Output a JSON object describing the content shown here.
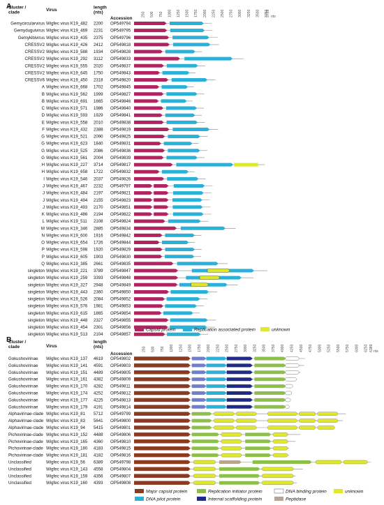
{
  "colors": {
    "capsid": "#b0245f",
    "rep": "#2bb0d8",
    "unknown": "#dfe82c",
    "green": "#8cc04a",
    "white": "#ffffff",
    "navy": "#1f2b86",
    "tan": "#b9a58f",
    "brown": "#8a3b22",
    "line": "#888888"
  },
  "panelA": {
    "label": "A",
    "headers": {
      "cluster": "Cluster /",
      "cluster2": "clade",
      "virus": "Virus",
      "length": "length",
      "length2": "(nts)",
      "accession": "Accession"
    },
    "ticks": [
      "250",
      "500",
      "750",
      "1000",
      "1250",
      "1500",
      "1750",
      "2000",
      "2250",
      "2500",
      "2750",
      "3000",
      "3250",
      "3500",
      "3750",
      "3789"
    ],
    "units": "nts",
    "legend": {
      "capsid": "Capsid protein",
      "rep": "Replication associated protein",
      "unknown": "unknown"
    },
    "rows": [
      {
        "cluster": "Gemycircularvirus",
        "virus": "Wigfec virus K19_482",
        "length": "2200",
        "acc": "OP549794"
      },
      {
        "cluster": "Gemyduguivirus",
        "virus": "Wigfec virus K19_469",
        "length": "2231",
        "acc": "OP549795"
      },
      {
        "cluster": "Gemykibivirus",
        "virus": "Wigfec virus K19_435",
        "length": "2375",
        "acc": "OP549796"
      },
      {
        "cluster": "CRESSV2",
        "virus": "Wigfec virus K19_426",
        "length": "2412",
        "acc": "OP549818"
      },
      {
        "cluster": "CRESSV2",
        "virus": "Wigfec virus K19_588",
        "length": "1934",
        "acc": "OP549828"
      },
      {
        "cluster": "CRESSV2",
        "virus": "Wigfec virus K19_292",
        "length": "3112",
        "acc": "OP549833"
      },
      {
        "cluster": "CRESSV2",
        "virus": "Wigfec virus K19_555",
        "length": "2020",
        "acc": "OP549837"
      },
      {
        "cluster": "CRESSV2",
        "virus": "Wigfec virus K19_645",
        "length": "1750",
        "acc": "OP549843"
      },
      {
        "cluster": "CRESSV6",
        "virus": "Wigfec virus K19_450",
        "length": "2318",
        "acc": "OP549820"
      },
      {
        "cluster": "A",
        "virus": "Wigfec virus K19_668",
        "length": "1702",
        "acc": "OP549845"
      },
      {
        "cluster": "B",
        "virus": "Wigfec virus K19_562",
        "length": "1999",
        "acc": "OP549827"
      },
      {
        "cluster": "B",
        "virus": "Wigfec virus K19_691",
        "length": "1665",
        "acc": "OP549846"
      },
      {
        "cluster": "C",
        "virus": "Wigfec virus K19_571",
        "length": "1986",
        "acc": "OP549840"
      },
      {
        "cluster": "D",
        "virus": "Wigfec virus K19_593",
        "length": "1929",
        "acc": "OP549841"
      },
      {
        "cluster": "E",
        "virus": "Wigfec virus K19_558",
        "length": "2010",
        "acc": "OP549838"
      },
      {
        "cluster": "F",
        "virus": "Wigfec virus K19_432",
        "length": "2388",
        "acc": "OP549819"
      },
      {
        "cluster": "G",
        "virus": "Wigfec virus K19_521",
        "length": "2090",
        "acc": "OP549825"
      },
      {
        "cluster": "G",
        "virus": "Wigfec virus K19_623",
        "length": "1840",
        "acc": "OP549831"
      },
      {
        "cluster": "G",
        "virus": "Wigfec virus K19_525",
        "length": "2086",
        "acc": "OP549836"
      },
      {
        "cluster": "G",
        "virus": "Wigfec virus K19_561",
        "length": "2004",
        "acc": "OP549839"
      },
      {
        "cluster": "H",
        "virus": "Wigfec virus K19_227",
        "length": "3714",
        "acc": "OP549817"
      },
      {
        "cluster": "H",
        "virus": "Wigfec virus K19_658",
        "length": "1722",
        "acc": "OP549832"
      },
      {
        "cluster": "I",
        "virus": "Wigfec virus K19_546",
        "length": "2037",
        "acc": "OP549826"
      },
      {
        "cluster": "J",
        "virus": "Wigfec virus K19_467",
        "length": "2232",
        "acc": "OP549797"
      },
      {
        "cluster": "J",
        "virus": "Wigfec virus K19_484",
        "length": "2197",
        "acc": "OP549821"
      },
      {
        "cluster": "J",
        "virus": "Wigfec virus K19_494",
        "length": "2155",
        "acc": "OP549823"
      },
      {
        "cluster": "J",
        "virus": "Wigfec virus K19_493",
        "length": "2170",
        "acc": "OP549851"
      },
      {
        "cluster": "K",
        "virus": "Wigfec virus K19_486",
        "length": "2194",
        "acc": "OP549822"
      },
      {
        "cluster": "L",
        "virus": "Wigfec virus K19_511",
        "length": "2108",
        "acc": "OP549824"
      },
      {
        "cluster": "M",
        "virus": "Wigfec virus K19_346",
        "length": "2885",
        "acc": "OP549834"
      },
      {
        "cluster": "N",
        "virus": "Wigfec virus K19_600",
        "length": "1916",
        "acc": "OP549842"
      },
      {
        "cluster": "O",
        "virus": "Wigfec virus K19_654",
        "length": "1726",
        "acc": "OP549844"
      },
      {
        "cluster": "P",
        "virus": "Wigfec virus K19_598",
        "length": "1920",
        "acc": "OP549829"
      },
      {
        "cluster": "P",
        "virus": "Wigfec virus K19_605",
        "length": "1903",
        "acc": "OP549830"
      },
      {
        "cluster": "Q",
        "virus": "Wigfec virus K19_385",
        "length": "2661",
        "acc": "OP549835"
      },
      {
        "cluster": "singleton",
        "virus": "Wigfec virus K19_221",
        "length": "3789",
        "acc": "OP549847"
      },
      {
        "cluster": "singleton",
        "virus": "Wigfec virus K19_259",
        "length": "3393",
        "acc": "OP549848"
      },
      {
        "cluster": "singleton",
        "virus": "Wigfec virus K19_327",
        "length": "2948",
        "acc": "OP549849"
      },
      {
        "cluster": "singleton",
        "virus": "Wigfec virus K19_443",
        "length": "2360",
        "acc": "OP549850"
      },
      {
        "cluster": "singleton",
        "virus": "Wigfec virus K19_526",
        "length": "2084",
        "acc": "OP549852"
      },
      {
        "cluster": "singleton",
        "virus": "Wigfec virus K19_576",
        "length": "1981",
        "acc": "OP549853"
      },
      {
        "cluster": "singleton",
        "virus": "Wigfec virus K19_615",
        "length": "1865",
        "acc": "OP549854"
      },
      {
        "cluster": "singleton",
        "virus": "Wigfec virus K19_448",
        "length": "2327",
        "acc": "OP549855"
      },
      {
        "cluster": "singleton",
        "virus": "Wigfec virus K19_454",
        "length": "2301",
        "acc": "OP549856"
      },
      {
        "cluster": "singleton",
        "virus": "Wigfec virus K19_513",
        "length": "2104",
        "acc": "OP549857"
      }
    ]
  },
  "panelB": {
    "label": "B",
    "headers": {
      "cluster": "Cluster /",
      "cluster2": "clade",
      "virus": "Virus",
      "length": "length",
      "length2": "(nts)",
      "accession": "Accession"
    },
    "ticks": [
      "250",
      "500",
      "750",
      "1000",
      "1250",
      "1500",
      "1750",
      "2000",
      "2250",
      "2500",
      "2750",
      "3000",
      "3250",
      "3500",
      "3750",
      "4000",
      "4250",
      "4500",
      "4750",
      "5000",
      "5250",
      "5500",
      "5750",
      "6000",
      "6250",
      "6389"
    ],
    "units": "nts",
    "legend": {
      "mcp": "Major capsid protein",
      "rip": "Replication initiator protein",
      "dbp": "DNA binding protein",
      "unknown": "unknown",
      "dnapilot": "DNA pilot protein",
      "isp": "Internal scaffolding protein",
      "pep": "Peptidase"
    },
    "rows": [
      {
        "cluster": "Gokushovirinae",
        "virus": "Wigfec virus K19_137",
        "length": "4619",
        "acc": "OP549802"
      },
      {
        "cluster": "Gokushovirinae",
        "virus": "Wigfec virus K19_141",
        "length": "4591",
        "acc": "OP549803"
      },
      {
        "cluster": "Gokushovirinae",
        "virus": "Wigfec virus K19_151",
        "length": "4489",
        "acc": "OP549805"
      },
      {
        "cluster": "Gokushovirinae",
        "virus": "Wigfec virus K19_161",
        "length": "4382",
        "acc": "OP549809"
      },
      {
        "cluster": "Gokushovirinae",
        "virus": "Wigfec virus K19_170",
        "length": "4282",
        "acc": "OP549811"
      },
      {
        "cluster": "Gokushovirinae",
        "virus": "Wigfec virus K19_174",
        "length": "4252",
        "acc": "OP549812"
      },
      {
        "cluster": "Gokushovirinae",
        "virus": "Wigfec virus K19_177",
        "length": "4225",
        "acc": "OP549813"
      },
      {
        "cluster": "Gokushovirinae",
        "virus": "Wigfec virus K19_179",
        "length": "4191",
        "acc": "OP549814"
      },
      {
        "cluster": "Alphavirinae-clade",
        "virus": "Wigfec virus K19_81",
        "length": "5712",
        "acc": "OP549799"
      },
      {
        "cluster": "Alphavirinae-clade",
        "virus": "Wigfec virus K19_83",
        "length": "5641",
        "acc": "OP549800"
      },
      {
        "cluster": "Alphavirinae-clade",
        "virus": "Wigfec virus K19_94",
        "length": "5415",
        "acc": "OP549801"
      },
      {
        "cluster": "Pichovirinae-clade",
        "virus": "Wigfec virus K19_152",
        "length": "4488",
        "acc": "OP549806"
      },
      {
        "cluster": "Pichovirinae-clade",
        "virus": "Wigfec virus K19_165",
        "length": "4360",
        "acc": "OP549810"
      },
      {
        "cluster": "Pichovirinae-clade",
        "virus": "Wigfec virus K19_180",
        "length": "4183",
        "acc": "OP549815"
      },
      {
        "cluster": "Pichovirinae-clade",
        "virus": "Wigfec virus K19_181",
        "length": "4182",
        "acc": "OP549816"
      },
      {
        "cluster": "Unclassified",
        "virus": "Wigfec virus K19_56",
        "length": "6389",
        "acc": "OP549798"
      },
      {
        "cluster": "Unclassified",
        "virus": "Wigfec virus K19_143",
        "length": "4558",
        "acc": "OP549804"
      },
      {
        "cluster": "Unclassified",
        "virus": "Wigfec virus K19_159",
        "length": "4356",
        "acc": "OP549807"
      },
      {
        "cluster": "Unclassified",
        "virus": "Wigfec virus K19_160",
        "length": "4393",
        "acc": "OP549808"
      }
    ]
  }
}
